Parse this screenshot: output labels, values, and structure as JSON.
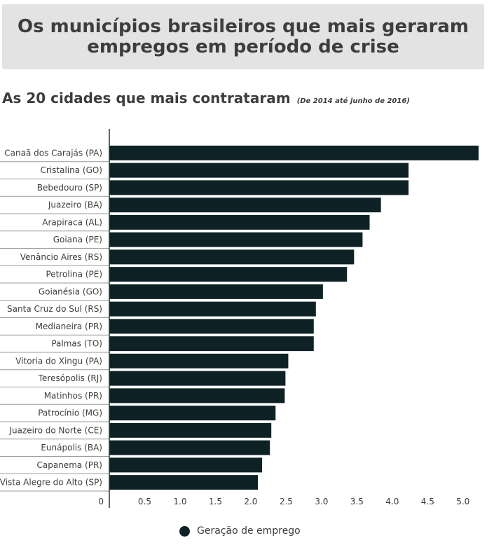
{
  "header": {
    "title_line1": "Os municípios brasileiros que mais geraram",
    "title_line2": "empregos em período de crise",
    "subtitle": "As 20 cidades que mais contrataram",
    "subtitle_note": "(De 2014 até junho de 2016)"
  },
  "colors": {
    "bar": "#0e2226",
    "axis": "#333333",
    "text": "#3d3d3d"
  },
  "chart_data": {
    "type": "bar",
    "orientation": "horizontal",
    "categories": [
      "Canaã dos Carajás (PA)",
      "Cristalina (GO)",
      "Bebedouro (SP)",
      "Juazeiro (BA)",
      "Arapiraca (AL)",
      "Goiana (PE)",
      "Venâncio Aires (RS)",
      "Petrolina (PE)",
      "Goianésia (GO)",
      "Santa Cruz do Sul (RS)",
      "Medianeira (PR)",
      "Palmas (TO)",
      "Vitoria do Xingu (PA)",
      "Teresópolis (RJ)",
      "Matinhos (PR)",
      "Patrocínio (MG)",
      "Juazeiro do Norte (CE)",
      "Eunápolis (BA)",
      "Capanema (PR)",
      "Vista Alegre do Alto (SP)"
    ],
    "series": [
      {
        "name": "Geração de emprego",
        "values": [
          5.22,
          4.23,
          4.23,
          3.84,
          3.68,
          3.58,
          3.46,
          3.36,
          3.02,
          2.92,
          2.89,
          2.89,
          2.53,
          2.49,
          2.48,
          2.35,
          2.29,
          2.27,
          2.16,
          2.1
        ]
      }
    ],
    "xticks": [
      0,
      0.5,
      1.0,
      1.5,
      2.0,
      2.5,
      3.0,
      3.5,
      4.0,
      4.5,
      5.0
    ],
    "xtick_labels": [
      "0",
      "0.5",
      "1.0",
      "1.5",
      "2.0",
      "2.5",
      "3.0",
      "3.5",
      "4.0",
      "4.5",
      "5.0"
    ],
    "xlim": [
      0,
      5.22
    ],
    "grid": false,
    "legend_position": "bottom-center"
  }
}
